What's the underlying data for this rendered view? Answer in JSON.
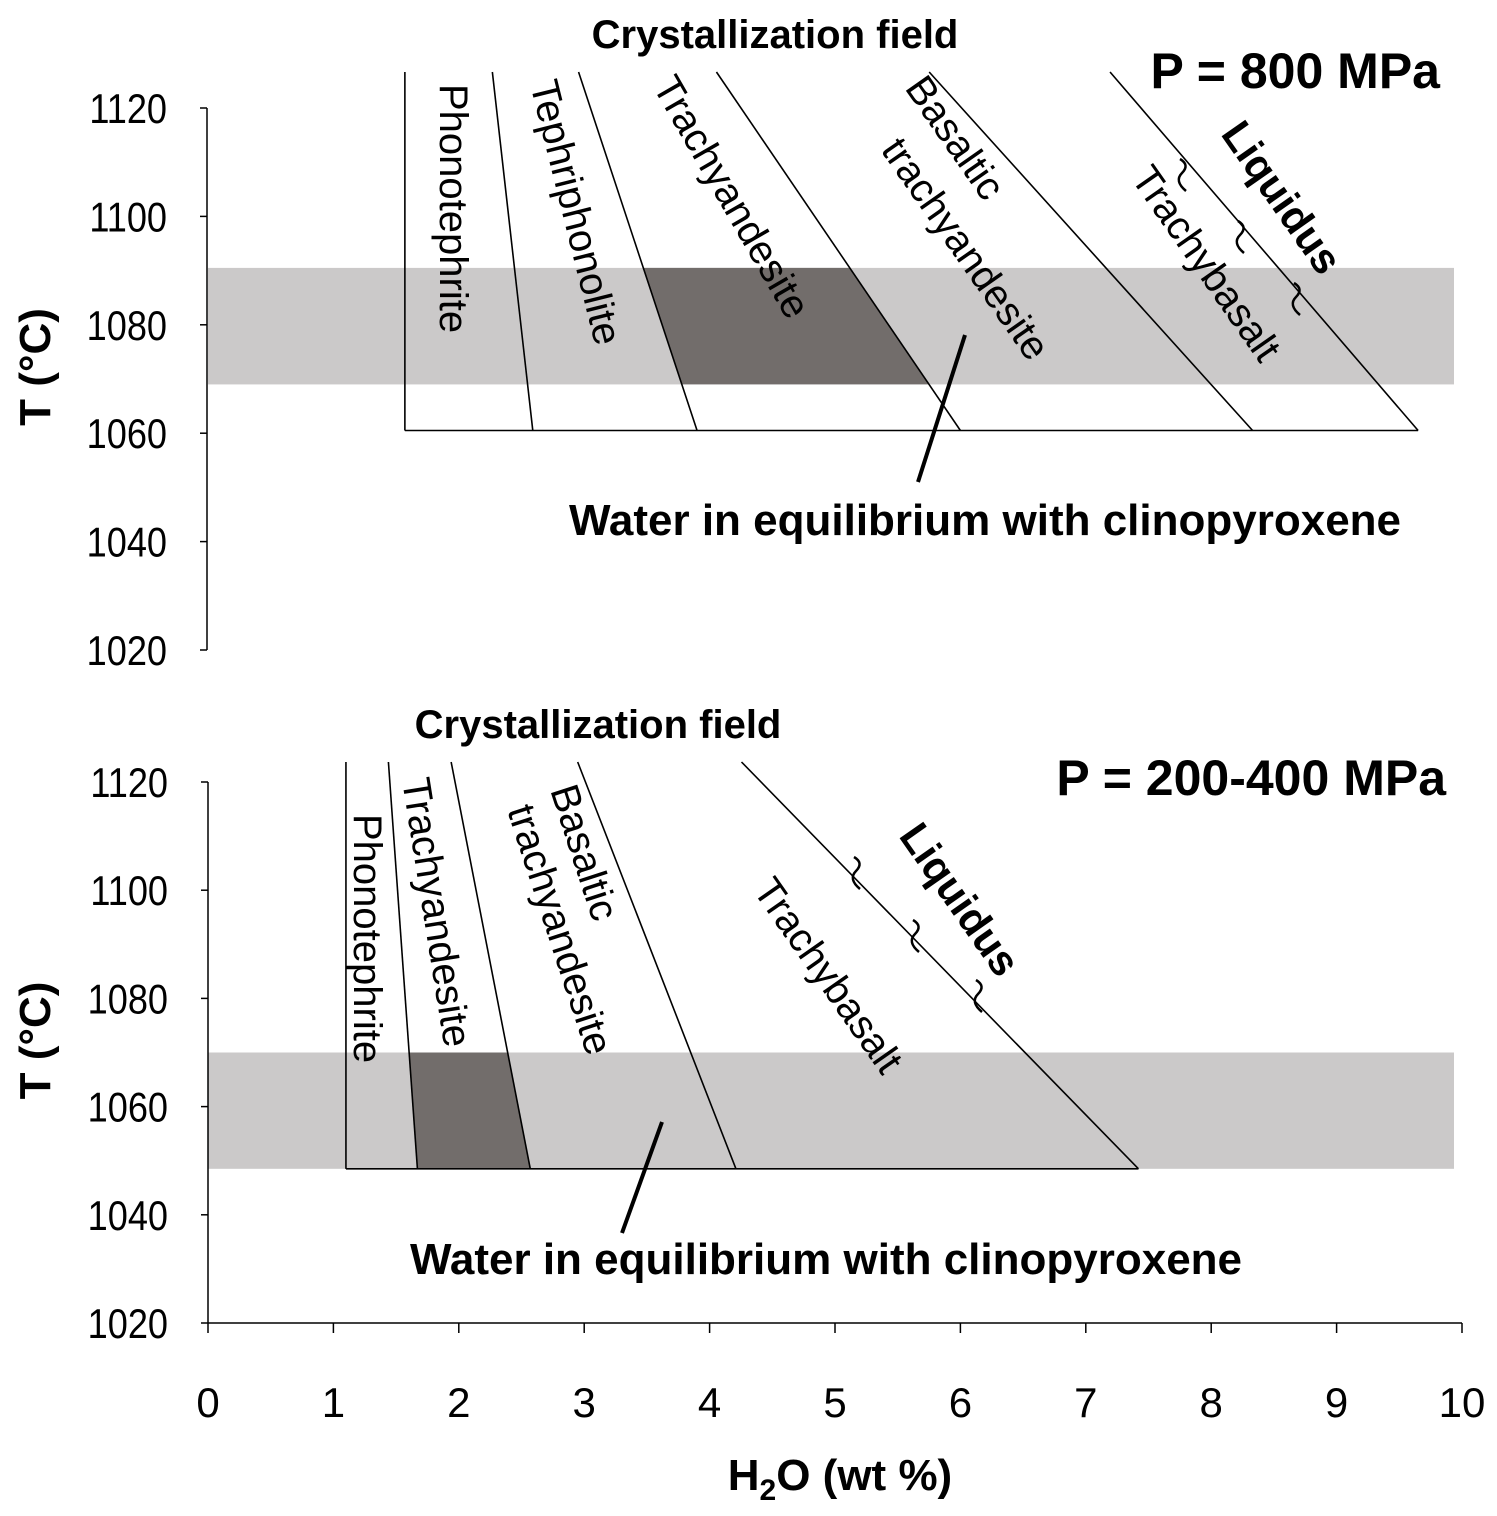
{
  "colors": {
    "band_light": "#cbc9c9",
    "band_dark": "#726d6b",
    "line": "#000000"
  },
  "chart_data": [
    {
      "type": "area",
      "panel": "top",
      "title": "Crystallization field",
      "pressure_label": "P = 800 MPa",
      "ylabel": "T (°C)",
      "xlabel": "",
      "xlim": [
        0,
        10
      ],
      "ylim": [
        1020,
        1120
      ],
      "y_ticks": [
        1020,
        1040,
        1060,
        1080,
        1100,
        1120
      ],
      "x_ticks": [],
      "base_T": 1060.5,
      "band": {
        "T_min": 1069,
        "T_max": 1090.5
      },
      "dark_field": {
        "lower": "Trachyandesite",
        "upper": "Basaltic trachyandesite"
      },
      "fields": [
        {
          "name": "Phonotephrite",
          "wt_at_base": 1.57,
          "wt_at_1120": 1.57
        },
        {
          "name": "Tephriphonolite",
          "wt_at_base": 2.59,
          "wt_at_1120": 2.3
        },
        {
          "name": "Trachyandesite",
          "wt_at_base": 3.9,
          "wt_at_1120": 3.05
        },
        {
          "name": "Basaltic trachyandesite",
          "wt_at_base": 6.0,
          "wt_at_1120": 4.25
        },
        {
          "name": "Trachybasalt",
          "wt_at_base": 8.33,
          "wt_at_1120": 6.01
        },
        {
          "name": "Liquidus",
          "wt_at_base": 9.65,
          "wt_at_1120": 7.44
        }
      ],
      "label_names": [
        "Phonotephrite",
        "Tephriphonolite",
        "Trachyandesite",
        "Basaltic",
        "trachyandesite",
        "Trachybasalt"
      ],
      "liquidus_label": "Liquidus",
      "annotation": "Water in equilibrium with clinopyroxene"
    },
    {
      "type": "area",
      "panel": "bottom",
      "title": "Crystallization field",
      "pressure_label": "P = 200-400 MPa",
      "ylabel": "T (°C)",
      "xlabel": "H2O (wt %)",
      "xlim": [
        0,
        10
      ],
      "ylim": [
        1020,
        1120
      ],
      "y_ticks": [
        1020,
        1040,
        1060,
        1080,
        1100,
        1120
      ],
      "x_ticks": [
        0,
        1,
        2,
        3,
        4,
        5,
        6,
        7,
        8,
        9,
        10
      ],
      "base_T": 1048.5,
      "band": {
        "T_min": 1048.5,
        "T_max": 1070
      },
      "dark_field": {
        "lower": "Trachyandesite",
        "upper": "Basaltic trachyandesite"
      },
      "fields": [
        {
          "name": "Phonotephrite",
          "wt_at_base": 1.1,
          "wt_at_1120": 1.1
        },
        {
          "name": "Trachyandesite",
          "wt_at_base": 1.67,
          "wt_at_1120": 1.45
        },
        {
          "name": "Basaltic trachyandesite",
          "wt_at_base": 2.57,
          "wt_at_1120": 1.97
        },
        {
          "name": "Trachybasalt",
          "wt_at_base": 4.21,
          "wt_at_1120": 3.01
        },
        {
          "name": "Liquidus",
          "wt_at_base": 7.42,
          "wt_at_1120": 4.41
        }
      ],
      "label_names": [
        "Phonotephrite",
        "Trachyandesite",
        "Basaltic",
        "trachyandesite",
        "Trachybasalt"
      ],
      "liquidus_label": "Liquidus",
      "annotation": "Water in equilibrium with clinopyroxene"
    }
  ],
  "xlabel_parts": {
    "h": "H",
    "sub": "2",
    "rest": "O (wt %)"
  }
}
